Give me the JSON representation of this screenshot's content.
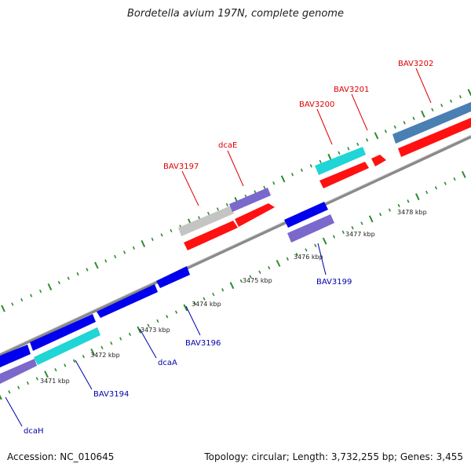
{
  "title": "Bordetella avium 197N, complete genome",
  "footer": {
    "accession": "Accession: NC_010645",
    "summary": "Topology: circular; Length: 3,732,255 bp; Genes: 3,455"
  },
  "colors": {
    "backbone": "#888888",
    "tick": "#2e8b2e",
    "label_top": "#dd0000",
    "label_bottom": "#0000aa"
  },
  "scale_labels": [
    "3471 kbp",
    "3472 kbp",
    "3473 kbp",
    "3474 kbp",
    "3475 kbp",
    "3476 kbp",
    "3477 kbp",
    "3478 kbp"
  ],
  "gene_labels_top": [
    "BAV3197",
    "dcaE",
    "BAV3200",
    "BAV3201",
    "BAV3202"
  ],
  "gene_labels_bottom": [
    "dcaH",
    "BAV3194",
    "dcaA",
    "BAV3196",
    "BAV3199"
  ]
}
